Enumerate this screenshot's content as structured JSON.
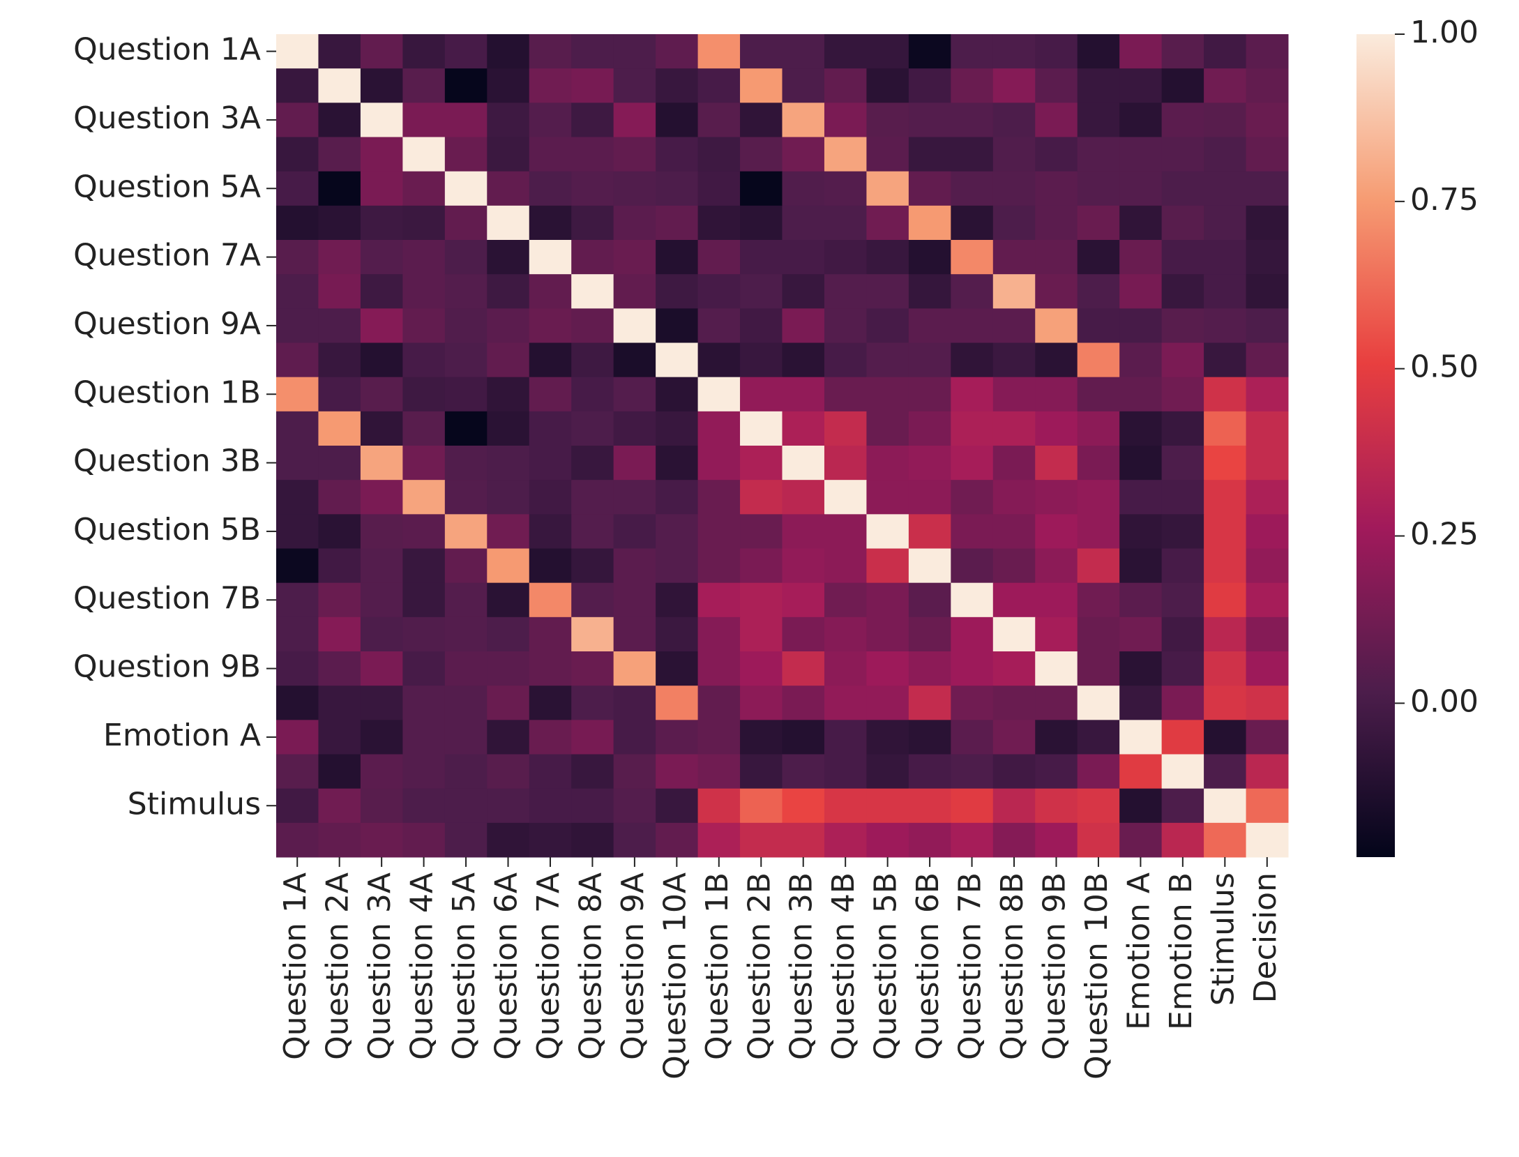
{
  "chart_data": {
    "type": "heatmap",
    "categories": [
      "Question 1A",
      "Question 2A",
      "Question 3A",
      "Question 4A",
      "Question 5A",
      "Question 6A",
      "Question 7A",
      "Question 8A",
      "Question 9A",
      "Question 10A",
      "Question 1B",
      "Question 2B",
      "Question 3B",
      "Question 4B",
      "Question 5B",
      "Question 6B",
      "Question 7B",
      "Question 8B",
      "Question 9B",
      "Question 10B",
      "Emotion A",
      "Emotion B",
      "Stimulus",
      "Decision"
    ],
    "y_categories": [
      "Question 1A",
      null,
      "Question 3A",
      null,
      "Question 5A",
      null,
      "Question 7A",
      null,
      "Question 9A",
      null,
      "Question 1B",
      null,
      "Question 3B",
      null,
      "Question 5B",
      null,
      "Question 7B",
      null,
      "Question 9B",
      null,
      "Emotion A",
      null,
      "Stimulus",
      null
    ],
    "z": [
      [
        1,
        -0.05,
        0.08,
        -0.05,
        0,
        -0.12,
        0.05,
        0.02,
        0.02,
        0.07,
        0.72,
        0.02,
        0.02,
        -0.06,
        -0.06,
        -0.2,
        0.02,
        0.02,
        0,
        -0.12,
        0.15,
        0.05,
        -0.02,
        0.06
      ],
      [
        -0.05,
        1,
        -0.1,
        0.05,
        -0.22,
        -0.1,
        0.12,
        0.14,
        0.02,
        -0.05,
        0,
        0.75,
        0.02,
        0.08,
        -0.1,
        -0.02,
        0.1,
        0.18,
        0.06,
        -0.05,
        -0.05,
        -0.12,
        0.12,
        0.08
      ],
      [
        0.08,
        -0.1,
        1,
        0.15,
        0.15,
        -0.03,
        0.04,
        -0.03,
        0.18,
        -0.12,
        0.05,
        -0.08,
        0.78,
        0.15,
        0.05,
        0.04,
        0.04,
        0.02,
        0.15,
        -0.05,
        -0.1,
        0.06,
        0.05,
        0.1
      ],
      [
        -0.05,
        0.05,
        0.15,
        1,
        0.1,
        -0.04,
        0.06,
        0.06,
        0.08,
        0,
        -0.03,
        0.05,
        0.12,
        0.78,
        0.06,
        -0.05,
        -0.05,
        0.03,
        0,
        0.04,
        0.04,
        0.04,
        0.02,
        0.08
      ],
      [
        0,
        -0.22,
        0.15,
        0.1,
        1,
        0.08,
        0.02,
        0.04,
        0.03,
        0.02,
        -0.02,
        -0.22,
        0.03,
        0.04,
        0.78,
        0.08,
        0.04,
        0.04,
        0.06,
        0.04,
        0.04,
        0.02,
        0.02,
        0.02
      ],
      [
        -0.12,
        -0.1,
        -0.03,
        -0.04,
        0.08,
        1,
        -0.1,
        -0.03,
        0.06,
        0.08,
        -0.08,
        -0.1,
        0.02,
        0.02,
        0.12,
        0.75,
        -0.1,
        0.02,
        0.06,
        0.1,
        -0.08,
        0.05,
        0.02,
        -0.08
      ],
      [
        0.05,
        0.12,
        0.04,
        0.06,
        0.02,
        -0.1,
        1,
        0.08,
        0.1,
        -0.12,
        0.08,
        0,
        0,
        -0.02,
        -0.05,
        -0.12,
        0.7,
        0.08,
        0.08,
        -0.1,
        0.1,
        0,
        0,
        -0.06
      ],
      [
        0.02,
        0.14,
        -0.03,
        0.06,
        0.04,
        -0.03,
        0.08,
        1,
        0.08,
        -0.03,
        0,
        0.02,
        -0.05,
        0.04,
        0.04,
        -0.06,
        0.04,
        0.82,
        0.1,
        0.02,
        0.14,
        -0.05,
        0,
        -0.08
      ],
      [
        0.02,
        0.02,
        0.18,
        0.08,
        0.03,
        0.06,
        0.1,
        0.08,
        1,
        -0.15,
        0.04,
        -0.02,
        0.15,
        0.04,
        0,
        0.06,
        0.06,
        0.06,
        0.77,
        0,
        0,
        0.05,
        0.04,
        0.02
      ],
      [
        0.07,
        -0.05,
        -0.12,
        0,
        0.02,
        0.08,
        -0.12,
        -0.03,
        -0.15,
        1,
        -0.1,
        -0.05,
        -0.1,
        0,
        0.04,
        0.04,
        -0.08,
        -0.04,
        -0.1,
        0.68,
        0.06,
        0.15,
        -0.05,
        0.08
      ],
      [
        0.72,
        0,
        0.05,
        -0.03,
        -0.02,
        -0.08,
        0.08,
        0,
        0.04,
        -0.1,
        1,
        0.22,
        0.22,
        0.1,
        0.1,
        0.1,
        0.28,
        0.18,
        0.18,
        0.08,
        0.08,
        0.12,
        0.42,
        0.3
      ],
      [
        0.02,
        0.75,
        -0.08,
        0.05,
        -0.22,
        -0.1,
        0,
        0.02,
        -0.02,
        -0.05,
        0.22,
        1,
        0.3,
        0.38,
        0.1,
        0.15,
        0.3,
        0.3,
        0.25,
        0.2,
        -0.1,
        -0.05,
        0.6,
        0.38
      ],
      [
        0.02,
        0.02,
        0.78,
        0.12,
        0.03,
        0.02,
        0,
        -0.05,
        0.15,
        -0.1,
        0.22,
        0.3,
        1,
        0.35,
        0.2,
        0.22,
        0.28,
        0.15,
        0.38,
        0.15,
        -0.12,
        0.02,
        0.52,
        0.38
      ],
      [
        -0.06,
        0.08,
        0.15,
        0.78,
        0.04,
        0.02,
        -0.02,
        0.04,
        0.04,
        0,
        0.1,
        0.38,
        0.35,
        1,
        0.2,
        0.2,
        0.12,
        0.18,
        0.2,
        0.22,
        0,
        0,
        0.45,
        0.3
      ],
      [
        -0.06,
        -0.1,
        0.05,
        0.06,
        0.78,
        0.12,
        -0.05,
        0.04,
        0,
        0.04,
        0.1,
        0.1,
        0.2,
        0.2,
        1,
        0.4,
        0.15,
        0.15,
        0.25,
        0.22,
        -0.08,
        -0.06,
        0.45,
        0.25
      ],
      [
        -0.2,
        -0.02,
        0.04,
        -0.05,
        0.08,
        0.75,
        -0.12,
        -0.06,
        0.06,
        0.04,
        0.1,
        0.15,
        0.22,
        0.2,
        0.4,
        1,
        0.06,
        0.1,
        0.2,
        0.38,
        -0.1,
        0,
        0.45,
        0.22
      ],
      [
        0.02,
        0.1,
        0.04,
        -0.05,
        0.04,
        -0.1,
        0.7,
        0.04,
        0.06,
        -0.08,
        0.28,
        0.3,
        0.28,
        0.12,
        0.15,
        0.06,
        1,
        0.25,
        0.25,
        0.12,
        0.06,
        0.02,
        0.48,
        0.28
      ],
      [
        0.02,
        0.18,
        0.02,
        0.03,
        0.04,
        0.02,
        0.08,
        0.82,
        0.06,
        -0.04,
        0.18,
        0.3,
        0.15,
        0.18,
        0.15,
        0.1,
        0.25,
        1,
        0.28,
        0.1,
        0.12,
        -0.02,
        0.35,
        0.18
      ],
      [
        0,
        0.06,
        0.15,
        0,
        0.06,
        0.06,
        0.08,
        0.1,
        0.77,
        -0.1,
        0.18,
        0.25,
        0.38,
        0.2,
        0.25,
        0.2,
        0.25,
        0.28,
        1,
        0.1,
        -0.1,
        0,
        0.42,
        0.25
      ],
      [
        -0.12,
        -0.05,
        -0.05,
        0.04,
        0.04,
        0.1,
        -0.1,
        0.02,
        0,
        0.68,
        0.08,
        0.2,
        0.15,
        0.22,
        0.22,
        0.38,
        0.12,
        0.1,
        0.1,
        1,
        -0.05,
        0.15,
        0.45,
        0.42
      ],
      [
        0.15,
        -0.05,
        -0.1,
        0.04,
        0.04,
        -0.08,
        0.1,
        0.14,
        0,
        0.06,
        0.08,
        -0.1,
        -0.12,
        0,
        -0.08,
        -0.1,
        0.06,
        0.12,
        -0.1,
        -0.05,
        1,
        0.48,
        -0.12,
        0.1
      ],
      [
        0.05,
        -0.12,
        0.06,
        0.04,
        0.02,
        0.05,
        0,
        -0.05,
        0.05,
        0.15,
        0.12,
        -0.05,
        0.02,
        0,
        -0.06,
        0,
        0.02,
        -0.02,
        0,
        0.15,
        0.48,
        1,
        0.02,
        0.35
      ],
      [
        -0.02,
        0.12,
        0.05,
        0.02,
        0.02,
        0.02,
        0,
        0,
        0.04,
        -0.05,
        0.42,
        0.6,
        0.52,
        0.45,
        0.45,
        0.45,
        0.48,
        0.35,
        0.42,
        0.45,
        -0.12,
        0.02,
        1,
        0.62
      ],
      [
        0.06,
        0.08,
        0.1,
        0.08,
        0.02,
        -0.08,
        -0.06,
        -0.08,
        0.02,
        0.08,
        0.3,
        0.38,
        0.38,
        0.3,
        0.25,
        0.22,
        0.28,
        0.18,
        0.25,
        0.42,
        0.1,
        0.35,
        0.62,
        1
      ]
    ],
    "zlim": [
      -0.23,
      1
    ],
    "zticks": [
      {
        "value": 0,
        "label": "0.00"
      },
      {
        "value": 0.25,
        "label": "0.25"
      },
      {
        "value": 0.5,
        "label": "0.50"
      },
      {
        "value": 0.75,
        "label": "0.75"
      },
      {
        "value": 1,
        "label": "1.00"
      }
    ],
    "colorscale": [
      "#03051a",
      "#4c1d4b",
      "#a11a5b",
      "#e83f3f",
      "#f69c73",
      "#faebdd"
    ]
  }
}
